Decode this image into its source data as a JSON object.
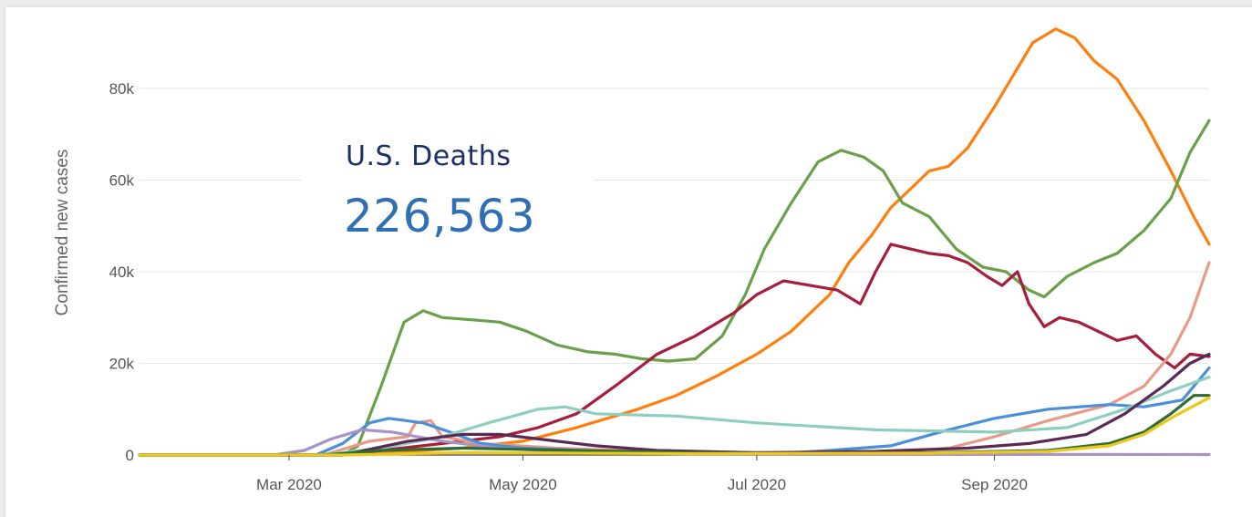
{
  "panel": {
    "stat_title": "U.S. Deaths",
    "stat_value": "226,563"
  },
  "chart_data": {
    "type": "line",
    "title": "",
    "ylabel": "Confirmed new cases",
    "xlabel": "",
    "x_range": [
      "2020-01-22",
      "2020-10-27"
    ],
    "ylim": [
      0,
      95000
    ],
    "y_ticks": [
      0,
      20000,
      40000,
      60000,
      80000
    ],
    "y_tick_labels": [
      "0",
      "20k",
      "40k",
      "60k",
      "80k"
    ],
    "x_ticks": [
      "2020-03-01",
      "2020-05-01",
      "2020-07-01",
      "2020-09-01"
    ],
    "x_tick_labels": [
      "Mar 2020",
      "May 2020",
      "Jul 2020",
      "Sep 2020"
    ],
    "grid": "horizontal",
    "series": [
      {
        "color": "#ff7f0e",
        "points": [
          [
            "2020-01-22",
            0
          ],
          [
            "2020-03-05",
            0
          ],
          [
            "2020-03-25",
            500
          ],
          [
            "2020-04-15",
            1500
          ],
          [
            "2020-05-01",
            3000
          ],
          [
            "2020-05-15",
            6000
          ],
          [
            "2020-05-31",
            10000
          ],
          [
            "2020-06-10",
            13000
          ],
          [
            "2020-06-20",
            17000
          ],
          [
            "2020-07-01",
            22000
          ],
          [
            "2020-07-10",
            27000
          ],
          [
            "2020-07-20",
            35000
          ],
          [
            "2020-07-25",
            42000
          ],
          [
            "2020-07-31",
            48000
          ],
          [
            "2020-08-05",
            54000
          ],
          [
            "2020-08-10",
            58000
          ],
          [
            "2020-08-15",
            62000
          ],
          [
            "2020-08-20",
            63000
          ],
          [
            "2020-08-25",
            67000
          ],
          [
            "2020-09-01",
            76000
          ],
          [
            "2020-09-06",
            83000
          ],
          [
            "2020-09-11",
            90000
          ],
          [
            "2020-09-17",
            93000
          ],
          [
            "2020-09-22",
            91000
          ],
          [
            "2020-09-27",
            86000
          ],
          [
            "2020-10-03",
            82000
          ],
          [
            "2020-10-10",
            73000
          ],
          [
            "2020-10-17",
            62000
          ],
          [
            "2020-10-23",
            52000
          ],
          [
            "2020-10-27",
            46000
          ]
        ]
      },
      {
        "color": "#6aa04a",
        "points": [
          [
            "2020-01-22",
            0
          ],
          [
            "2020-03-15",
            0
          ],
          [
            "2020-03-19",
            2000
          ],
          [
            "2020-03-25",
            15000
          ],
          [
            "2020-03-31",
            29000
          ],
          [
            "2020-04-05",
            31500
          ],
          [
            "2020-04-10",
            30000
          ],
          [
            "2020-04-18",
            29500
          ],
          [
            "2020-04-25",
            29000
          ],
          [
            "2020-05-02",
            27000
          ],
          [
            "2020-05-10",
            24000
          ],
          [
            "2020-05-18",
            22500
          ],
          [
            "2020-05-25",
            22000
          ],
          [
            "2020-06-01",
            21000
          ],
          [
            "2020-06-08",
            20500
          ],
          [
            "2020-06-15",
            21000
          ],
          [
            "2020-06-22",
            26000
          ],
          [
            "2020-06-28",
            35000
          ],
          [
            "2020-07-03",
            45000
          ],
          [
            "2020-07-10",
            55000
          ],
          [
            "2020-07-17",
            64000
          ],
          [
            "2020-07-23",
            66500
          ],
          [
            "2020-07-29",
            65000
          ],
          [
            "2020-08-03",
            62000
          ],
          [
            "2020-08-08",
            55000
          ],
          [
            "2020-08-15",
            52000
          ],
          [
            "2020-08-22",
            45000
          ],
          [
            "2020-08-29",
            41000
          ],
          [
            "2020-09-04",
            40000
          ],
          [
            "2020-09-10",
            36000
          ],
          [
            "2020-09-14",
            34500
          ],
          [
            "2020-09-20",
            39000
          ],
          [
            "2020-09-27",
            42000
          ],
          [
            "2020-10-03",
            44000
          ],
          [
            "2020-10-10",
            49000
          ],
          [
            "2020-10-17",
            56000
          ],
          [
            "2020-10-22",
            66000
          ],
          [
            "2020-10-27",
            73000
          ]
        ]
      },
      {
        "color": "#a61e3c",
        "points": [
          [
            "2020-01-22",
            0
          ],
          [
            "2020-03-15",
            0
          ],
          [
            "2020-03-25",
            1000
          ],
          [
            "2020-04-10",
            2500
          ],
          [
            "2020-04-25",
            4000
          ],
          [
            "2020-05-05",
            6000
          ],
          [
            "2020-05-15",
            9000
          ],
          [
            "2020-05-25",
            15000
          ],
          [
            "2020-06-05",
            22000
          ],
          [
            "2020-06-15",
            26000
          ],
          [
            "2020-06-25",
            31000
          ],
          [
            "2020-07-01",
            35000
          ],
          [
            "2020-07-08",
            38000
          ],
          [
            "2020-07-15",
            37000
          ],
          [
            "2020-07-22",
            36000
          ],
          [
            "2020-07-28",
            33000
          ],
          [
            "2020-08-01",
            40000
          ],
          [
            "2020-08-05",
            46000
          ],
          [
            "2020-08-10",
            45000
          ],
          [
            "2020-08-15",
            44000
          ],
          [
            "2020-08-20",
            43500
          ],
          [
            "2020-08-25",
            42000
          ],
          [
            "2020-08-30",
            39000
          ],
          [
            "2020-09-03",
            37000
          ],
          [
            "2020-09-07",
            40000
          ],
          [
            "2020-09-10",
            33000
          ],
          [
            "2020-09-14",
            28000
          ],
          [
            "2020-09-18",
            30000
          ],
          [
            "2020-09-23",
            29000
          ],
          [
            "2020-09-28",
            27000
          ],
          [
            "2020-10-03",
            25000
          ],
          [
            "2020-10-08",
            26000
          ],
          [
            "2020-10-13",
            22000
          ],
          [
            "2020-10-18",
            19000
          ],
          [
            "2020-10-22",
            22000
          ],
          [
            "2020-10-27",
            21500
          ]
        ]
      },
      {
        "color": "#e99a86",
        "points": [
          [
            "2020-01-22",
            0
          ],
          [
            "2020-03-10",
            0
          ],
          [
            "2020-03-22",
            3000
          ],
          [
            "2020-04-01",
            4000
          ],
          [
            "2020-04-03",
            7000
          ],
          [
            "2020-04-07",
            7500
          ],
          [
            "2020-04-10",
            4000
          ],
          [
            "2020-04-20",
            2500
          ],
          [
            "2020-05-10",
            1500
          ],
          [
            "2020-06-01",
            800
          ],
          [
            "2020-07-01",
            500
          ],
          [
            "2020-08-01",
            500
          ],
          [
            "2020-08-20",
            1500
          ],
          [
            "2020-09-01",
            4000
          ],
          [
            "2020-09-15",
            7500
          ],
          [
            "2020-10-01",
            11000
          ],
          [
            "2020-10-10",
            15000
          ],
          [
            "2020-10-17",
            22000
          ],
          [
            "2020-10-22",
            30000
          ],
          [
            "2020-10-27",
            42000
          ]
        ]
      },
      {
        "color": "#4a90d9",
        "points": [
          [
            "2020-01-22",
            0
          ],
          [
            "2020-03-08",
            0
          ],
          [
            "2020-03-15",
            2500
          ],
          [
            "2020-03-22",
            7000
          ],
          [
            "2020-03-27",
            8000
          ],
          [
            "2020-04-05",
            7000
          ],
          [
            "2020-04-12",
            5000
          ],
          [
            "2020-04-20",
            2500
          ],
          [
            "2020-05-01",
            1500
          ],
          [
            "2020-06-01",
            500
          ],
          [
            "2020-07-05",
            200
          ],
          [
            "2020-07-20",
            1000
          ],
          [
            "2020-08-05",
            2000
          ],
          [
            "2020-08-20",
            5500
          ],
          [
            "2020-09-01",
            8000
          ],
          [
            "2020-09-15",
            10000
          ],
          [
            "2020-10-01",
            11000
          ],
          [
            "2020-10-10",
            10500
          ],
          [
            "2020-10-20",
            12000
          ],
          [
            "2020-10-27",
            19000
          ]
        ]
      },
      {
        "color": "#8ccfbe",
        "points": [
          [
            "2020-01-22",
            0
          ],
          [
            "2020-03-10",
            0
          ],
          [
            "2020-03-25",
            1500
          ],
          [
            "2020-04-10",
            4000
          ],
          [
            "2020-04-22",
            7000
          ],
          [
            "2020-05-05",
            10000
          ],
          [
            "2020-05-12",
            10500
          ],
          [
            "2020-05-20",
            9000
          ],
          [
            "2020-06-10",
            8500
          ],
          [
            "2020-07-01",
            7000
          ],
          [
            "2020-08-01",
            5500
          ],
          [
            "2020-09-01",
            5000
          ],
          [
            "2020-09-20",
            6000
          ],
          [
            "2020-10-05",
            10000
          ],
          [
            "2020-10-17",
            14000
          ],
          [
            "2020-10-27",
            17000
          ]
        ]
      },
      {
        "color": "#a893c4",
        "points": [
          [
            "2020-01-22",
            0
          ],
          [
            "2020-02-26",
            0
          ],
          [
            "2020-03-05",
            1000
          ],
          [
            "2020-03-12",
            3500
          ],
          [
            "2020-03-20",
            5500
          ],
          [
            "2020-03-28",
            5000
          ],
          [
            "2020-04-10",
            3000
          ],
          [
            "2020-04-25",
            1500
          ],
          [
            "2020-05-15",
            600
          ],
          [
            "2020-06-15",
            200
          ],
          [
            "2020-10-27",
            100
          ]
        ]
      },
      {
        "color": "#5a2a55",
        "points": [
          [
            "2020-01-22",
            0
          ],
          [
            "2020-03-15",
            0
          ],
          [
            "2020-04-01",
            3000
          ],
          [
            "2020-04-15",
            4500
          ],
          [
            "2020-04-25",
            4500
          ],
          [
            "2020-05-05",
            3500
          ],
          [
            "2020-05-20",
            2000
          ],
          [
            "2020-06-05",
            1000
          ],
          [
            "2020-07-01",
            500
          ],
          [
            "2020-08-01",
            800
          ],
          [
            "2020-08-25",
            1500
          ],
          [
            "2020-09-10",
            2500
          ],
          [
            "2020-09-25",
            4500
          ],
          [
            "2020-10-05",
            9000
          ],
          [
            "2020-10-15",
            15000
          ],
          [
            "2020-10-22",
            20000
          ],
          [
            "2020-10-27",
            22000
          ]
        ]
      },
      {
        "color": "#2e6b35",
        "points": [
          [
            "2020-01-22",
            0
          ],
          [
            "2020-03-10",
            0
          ],
          [
            "2020-03-25",
            1000
          ],
          [
            "2020-04-15",
            1500
          ],
          [
            "2020-05-15",
            1000
          ],
          [
            "2020-06-15",
            500
          ],
          [
            "2020-07-15",
            300
          ],
          [
            "2020-08-15",
            500
          ],
          [
            "2020-09-15",
            1000
          ],
          [
            "2020-10-01",
            2500
          ],
          [
            "2020-10-10",
            5000
          ],
          [
            "2020-10-17",
            9000
          ],
          [
            "2020-10-23",
            13000
          ],
          [
            "2020-10-27",
            13000
          ]
        ]
      },
      {
        "color": "#ecc81a",
        "points": [
          [
            "2020-01-22",
            0
          ],
          [
            "2020-03-15",
            0
          ],
          [
            "2020-04-15",
            500
          ],
          [
            "2020-06-15",
            300
          ],
          [
            "2020-08-15",
            400
          ],
          [
            "2020-09-15",
            800
          ],
          [
            "2020-10-01",
            2000
          ],
          [
            "2020-10-10",
            4500
          ],
          [
            "2020-10-18",
            8500
          ],
          [
            "2020-10-27",
            12500
          ]
        ]
      }
    ]
  }
}
